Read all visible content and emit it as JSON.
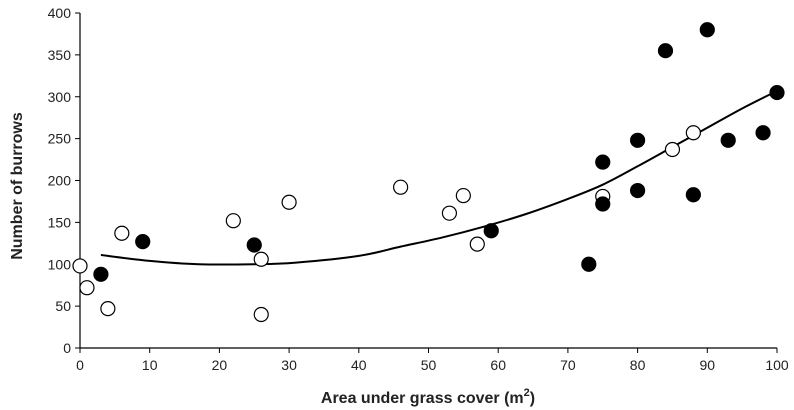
{
  "chart_data": {
    "type": "scatter",
    "xlabel": "Area under grass cover (m",
    "xlabel_sup": "2",
    "xlabel_suffix": ")",
    "ylabel": "Number of burrows",
    "xlim": [
      0,
      100
    ],
    "ylim": [
      0,
      400
    ],
    "x_ticks": [
      0,
      10,
      20,
      30,
      40,
      50,
      60,
      70,
      80,
      90,
      100
    ],
    "y_ticks": [
      0,
      50,
      100,
      150,
      200,
      250,
      300,
      350,
      400
    ],
    "grid": false,
    "series": [
      {
        "marker": "open-circle",
        "color": "#000000",
        "points": [
          {
            "x": 0,
            "y": 98
          },
          {
            "x": 1,
            "y": 72
          },
          {
            "x": 4,
            "y": 47
          },
          {
            "x": 6,
            "y": 137
          },
          {
            "x": 22,
            "y": 152
          },
          {
            "x": 26,
            "y": 106
          },
          {
            "x": 26,
            "y": 40
          },
          {
            "x": 30,
            "y": 174
          },
          {
            "x": 46,
            "y": 192
          },
          {
            "x": 53,
            "y": 161
          },
          {
            "x": 55,
            "y": 182
          },
          {
            "x": 57,
            "y": 124
          },
          {
            "x": 75,
            "y": 181
          },
          {
            "x": 85,
            "y": 237
          },
          {
            "x": 88,
            "y": 257
          }
        ]
      },
      {
        "marker": "filled-circle",
        "color": "#000000",
        "points": [
          {
            "x": 3,
            "y": 88
          },
          {
            "x": 9,
            "y": 127
          },
          {
            "x": 25,
            "y": 123
          },
          {
            "x": 59,
            "y": 140
          },
          {
            "x": 73,
            "y": 100
          },
          {
            "x": 75,
            "y": 222
          },
          {
            "x": 75,
            "y": 172
          },
          {
            "x": 80,
            "y": 248
          },
          {
            "x": 80,
            "y": 188
          },
          {
            "x": 84,
            "y": 355
          },
          {
            "x": 88,
            "y": 183
          },
          {
            "x": 90,
            "y": 380
          },
          {
            "x": 93,
            "y": 248
          },
          {
            "x": 98,
            "y": 257
          },
          {
            "x": 100,
            "y": 305
          }
        ]
      }
    ],
    "trendline": {
      "type": "polynomial",
      "points": [
        {
          "x": 3,
          "y": 111
        },
        {
          "x": 10,
          "y": 104
        },
        {
          "x": 17,
          "y": 100
        },
        {
          "x": 25,
          "y": 100
        },
        {
          "x": 31,
          "y": 102
        },
        {
          "x": 40,
          "y": 110
        },
        {
          "x": 46,
          "y": 121
        },
        {
          "x": 52,
          "y": 132
        },
        {
          "x": 58,
          "y": 145
        },
        {
          "x": 64,
          "y": 160
        },
        {
          "x": 70,
          "y": 178
        },
        {
          "x": 75,
          "y": 195
        },
        {
          "x": 80,
          "y": 217
        },
        {
          "x": 85,
          "y": 240
        },
        {
          "x": 90,
          "y": 263
        },
        {
          "x": 95,
          "y": 286
        },
        {
          "x": 100,
          "y": 307
        }
      ]
    }
  }
}
